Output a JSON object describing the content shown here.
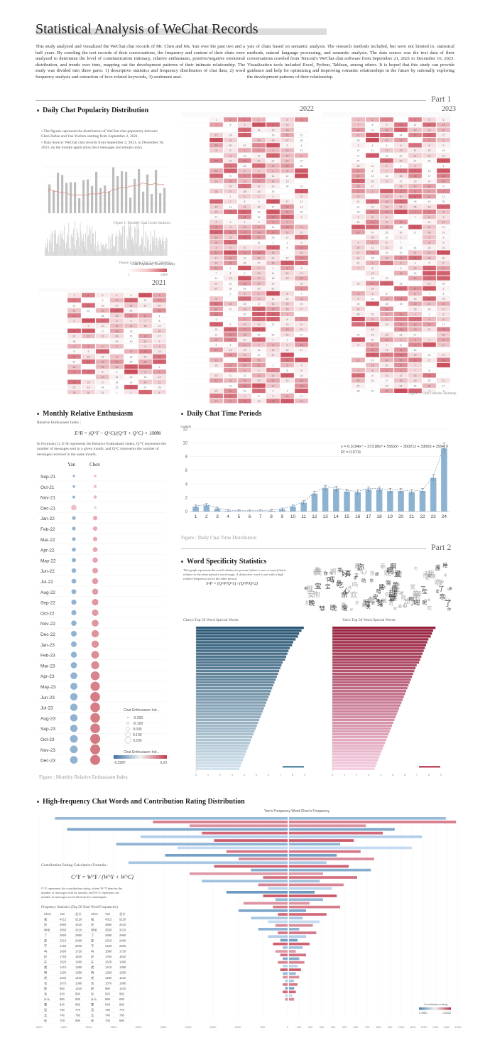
{
  "header": {
    "title": "Statistical Analysis of WeChat Records",
    "intro_left": "This study analyzed and visualized the WeChat chat records of Mr. Chen and Ms. Yan over the past two and a half years. By crawling the text records of their conversations, the frequency and content of their chats were analyzed to determine the level of communication intimacy, relative enthusiasm, positive/negative emotional distribution, and trends over time, mapping out the development patterns of their intimate relationship. The study was divided into three parts: 1) descriptive statistics and frequency distribution of chat data, 2) word frequency analysis and extraction of love-related keywords, 3) sentiment anal-",
    "intro_right": "ysis of chats based on semantic analysis. The research methods included, but were not limited to, statistical methods, natural language processing, and semantic analysis. The data source was the text data of their conversations crawled from Tencent's WeChat chat software from September 21, 2021 to December 16, 2023. Visualization tools included Excel, Python, Tableau, among others. It is hoped that this study can provide guidance and help for optimizing and improving romantic relationships in the future by rationally exploring the development patterns of their relationship."
  },
  "parts": {
    "part1": "Part 1",
    "part2": "Part 2"
  },
  "popularity": {
    "title": "Daily Chat Popularity Distribution",
    "bullet1": "The figures represent the distribution of WeChat chat popularity between Chen Rufan and Yan Yuchen starting from September 2, 2021.",
    "bullet2": "Data Source: WeChat chat records from September 2, 2021, to December 16, 2023, on the mobile application (text messages and emojis only).",
    "caption1": "Figure 1: Monthly Chat Count Statistics",
    "caption2": "Figure 2: Daily Chat Count Statistics",
    "caption3": "Figure 3: Chat Calendar Heatmap",
    "legend_title": "Chat Popularity Score (Count)",
    "legend_min": "1",
    "legend_max": "2466",
    "years": [
      "2021",
      "2022",
      "2023"
    ]
  },
  "enthusiasm": {
    "title": "Monthly Relative Enthusiasm",
    "index_label": "Relative Enthusiasm Index :",
    "formula": "E^R = (Q^Y − Q^C)/(Q^Y + Q^C) × 100%",
    "formula_num": "(1)",
    "desc": "In Formula (1), E^R represents the Relative Enthusiasm Index, Q^Y represents the number of messages sent in a given month, and Q^C represents the number of messages received in the same month.",
    "col_yan": "Yan",
    "col_chen": "Chen",
    "months": [
      "Sep-21",
      "Oct-21",
      "Nov-21",
      "Dec-21",
      "Jan-22",
      "Feb-22",
      "Mar-22",
      "Apr-22",
      "May-22",
      "Jun-22",
      "Jul-22",
      "Aug-22",
      "Sep-22",
      "Oct-22",
      "Nov-22",
      "Dec-22",
      "Jan-23",
      "Feb-23",
      "Mar-23",
      "Apr-23",
      "May-23",
      "Jun-23",
      "Jul-23",
      "Aug-23",
      "Sep-23",
      "Oct-23",
      "Nov-23",
      "Dec-23"
    ],
    "yan_values": [
      -0.02,
      -0.03,
      -0.04,
      0.03,
      -0.07,
      -0.07,
      -0.07,
      -0.08,
      -0.09,
      -0.1,
      -0.11,
      -0.11,
      -0.12,
      -0.12,
      -0.13,
      -0.14,
      -0.14,
      -0.15,
      -0.16,
      -0.18,
      -0.19,
      -0.2,
      -0.2,
      -0.2,
      -0.2,
      -0.21,
      -0.21,
      -0.21
    ],
    "chen_values": [
      0.02,
      0.03,
      0.04,
      -0.03,
      0.07,
      0.07,
      0.07,
      0.08,
      0.09,
      0.1,
      0.11,
      0.11,
      0.12,
      0.12,
      0.13,
      0.14,
      0.14,
      0.15,
      0.16,
      0.18,
      0.19,
      0.2,
      0.2,
      0.2,
      0.2,
      0.21,
      0.21,
      0.21
    ],
    "size_legend_title": "Chat Enthusiasm Ind...",
    "size_legend": [
      "-0.200",
      "-0.100",
      "0.000",
      "0.100",
      "0.200"
    ],
    "color_legend_title": "Chat Enthusiasm Ind...",
    "color_min": "-0.2087",
    "color_max": "0.20",
    "caption": "Figure : Monthly Relative Enthusiasm Index"
  },
  "time_periods": {
    "title": "Daily Chat Time Periods",
    "equation": "y = 6.3104x⁴ − 373.88x³ + 5992x² − 30021x + 33063 + 2994.9",
    "r2": "R² = 0.9711",
    "caption": "Figure : Daily Chat Time Distribution",
    "unit": "×10000",
    "ylim": [
      0,
      12
    ],
    "yticks": [
      "0",
      "2",
      "4",
      "6",
      "8",
      "10",
      "12"
    ]
  },
  "chart_data": [
    {
      "type": "bar",
      "title": "",
      "categories": [
        "1",
        "2",
        "3",
        "4",
        "5",
        "6",
        "7",
        "8",
        "9",
        "10",
        "11",
        "12",
        "13",
        "14",
        "15",
        "16",
        "17",
        "18",
        "19",
        "20",
        "21",
        "22",
        "23",
        "24"
      ],
      "values": [
        0.7,
        0.9,
        0.4,
        0.1,
        0.05,
        0.02,
        0.05,
        0.1,
        0.3,
        0.7,
        1.3,
        2.6,
        3.4,
        3.3,
        2.9,
        2.8,
        3.2,
        3.2,
        3.0,
        3.0,
        2.8,
        3.0,
        4.9,
        9.2
      ],
      "ylim": [
        0,
        12
      ],
      "xlabel": "",
      "ylabel": ""
    }
  ],
  "word_spec": {
    "title": "Word Specificity Statistics",
    "desc": "This graph represents the word's distinctive person (either to one or more) that is relative to the other person's word usage. A distinctive word is one with a high relative-frequency use to the other person.",
    "formula": "S^P = (Q^P/Q^1) / (Q^P/Q^2)",
    "chen_title": "Chen's Top 50 Word Special Words",
    "yan_title": "Yan's Top 50 Word Special Words",
    "chen_bars": [
      0.92,
      0.9,
      0.88,
      0.87,
      0.85,
      0.83,
      0.82,
      0.8,
      0.79,
      0.78,
      0.77,
      0.76,
      0.74,
      0.73,
      0.72,
      0.71,
      0.7,
      0.69,
      0.68,
      0.67,
      0.66,
      0.65,
      0.64,
      0.63,
      0.62,
      0.61,
      0.6,
      0.59,
      0.58,
      0.57,
      0.56,
      0.55,
      0.54,
      0.53,
      0.52,
      0.51,
      0.5,
      0.49,
      0.48,
      0.47,
      0.46,
      0.45,
      0.44,
      0.43,
      0.42,
      0.41,
      0.4,
      0.39,
      0.38,
      0.37
    ],
    "yan_bars": [
      0.88,
      0.86,
      0.85,
      0.84,
      0.82,
      0.81,
      0.8,
      0.79,
      0.78,
      0.77,
      0.76,
      0.75,
      0.74,
      0.72,
      0.71,
      0.7,
      0.69,
      0.68,
      0.67,
      0.66,
      0.65,
      0.64,
      0.63,
      0.62,
      0.61,
      0.6,
      0.59,
      0.58,
      0.57,
      0.56,
      0.55,
      0.54,
      0.53,
      0.52,
      0.51,
      0.5,
      0.49,
      0.48,
      0.47,
      0.46,
      0.45,
      0.44,
      0.43,
      0.42,
      0.41,
      0.4,
      0.39,
      0.38,
      0.37,
      0.36
    ]
  },
  "contribution": {
    "title": "High-frequency Chat Words and Contribution Rating Distribution",
    "legend": "Yan's Frequency   Word   Chen's Frequency",
    "formula_title": "Contribution Rating Calculation Formula :",
    "formula": "C^Y = W^Y / (W^Y + W^C)",
    "formula_desc": "C^Y represents the contribution rating, where W^Y denotes the number of messages sent by oneself, and W^C represents the number of messages received from the counterpart.",
    "table_title": "Frequency Statistics (Top 50 Total Word Frequencies)",
    "table_rows": [
      [
        "Chen",
        "Yan",
        "总计"
      ],
      [
        "我",
        "4312",
        "5120"
      ],
      [
        "你",
        "3980",
        "4410"
      ],
      [
        "哈哈",
        "3650",
        "3210"
      ],
      [
        "了",
        "2890",
        "2950"
      ],
      [
        "是",
        "2310",
        "2460"
      ],
      [
        "不",
        "2150",
        "2200"
      ],
      [
        "吗",
        "1890",
        "1720"
      ],
      [
        "好",
        "1760",
        "1810"
      ],
      [
        "在",
        "1520",
        "1490"
      ],
      [
        "就",
        "1410",
        "1380"
      ],
      [
        "啊",
        "1290",
        "1350"
      ],
      [
        "吧",
        "1180",
        "1120"
      ],
      [
        "也",
        "1070",
        "1090"
      ],
      [
        "那",
        "980",
        "1010"
      ],
      [
        "有",
        "920",
        "950"
      ],
      [
        "什么",
        "880",
        "830"
      ],
      [
        "要",
        "840",
        "860"
      ],
      [
        "没",
        "790",
        "770"
      ],
      [
        "去",
        "740",
        "760"
      ],
      [
        "还",
        "700",
        "690"
      ]
    ],
    "axis": [
      "5000",
      "4500",
      "4000",
      "3500",
      "3000",
      "2500",
      "2000",
      "1500",
      "1000",
      "500",
      "0",
      "100",
      "200",
      "300",
      "400",
      "500",
      "600",
      "700",
      "800",
      "900",
      "1000",
      "1100",
      "1200",
      "1300",
      "1400",
      "1500"
    ],
    "color_legend": "Contribution rating",
    "color_min": "0.3980",
    "color_max": "0.6020",
    "left_bars": [
      0.95,
      0.55,
      0.4,
      0.9,
      0.35,
      0.6,
      0.3,
      0.7,
      0.45,
      0.25,
      0.5,
      0.2,
      0.65,
      0.3,
      0.15,
      0.4,
      0.1,
      0.35,
      0.12,
      0.08,
      0.25,
      0.1,
      0.05,
      0.18,
      0.06,
      0.2,
      0.04,
      0.15,
      0.08,
      0.05,
      0.12,
      0.04,
      0.08,
      0.03,
      0.06,
      0.02,
      0.05,
      0.03,
      0.02,
      0.04,
      0.02,
      0.03,
      0.02,
      0.02,
      0.01,
      0.02,
      0.01,
      0.02,
      0.01,
      0.01
    ],
    "right_bars": [
      0.92,
      0.98,
      0.45,
      0.62,
      0.55,
      0.78,
      0.38,
      0.3,
      0.72,
      0.42,
      0.28,
      0.5,
      0.22,
      0.35,
      0.48,
      0.2,
      0.4,
      0.18,
      0.32,
      0.25,
      0.15,
      0.28,
      0.2,
      0.12,
      0.3,
      0.1,
      0.22,
      0.08,
      0.18,
      0.14,
      0.06,
      0.16,
      0.1,
      0.05,
      0.12,
      0.08,
      0.04,
      0.1,
      0.06,
      0.09,
      0.05,
      0.07,
      0.04,
      0.06,
      0.03,
      0.05,
      0.03,
      0.04,
      0.02,
      0.03
    ],
    "ratings": [
      0.45,
      0.55,
      0.52,
      0.42,
      0.58,
      0.48,
      0.6,
      0.44,
      0.5,
      0.56,
      0.41,
      0.53,
      0.47,
      0.59,
      0.43,
      0.51,
      0.57,
      0.46,
      0.54,
      0.49,
      0.4,
      0.6,
      0.45,
      0.52,
      0.55,
      0.42,
      0.58,
      0.47,
      0.5,
      0.53,
      0.44,
      0.56,
      0.48,
      0.41,
      0.59,
      0.46,
      0.51,
      0.57,
      0.43,
      0.54,
      0.49,
      0.6,
      0.45,
      0.52,
      0.47,
      0.55,
      0.42,
      0.58,
      0.5,
      0.53
    ]
  }
}
